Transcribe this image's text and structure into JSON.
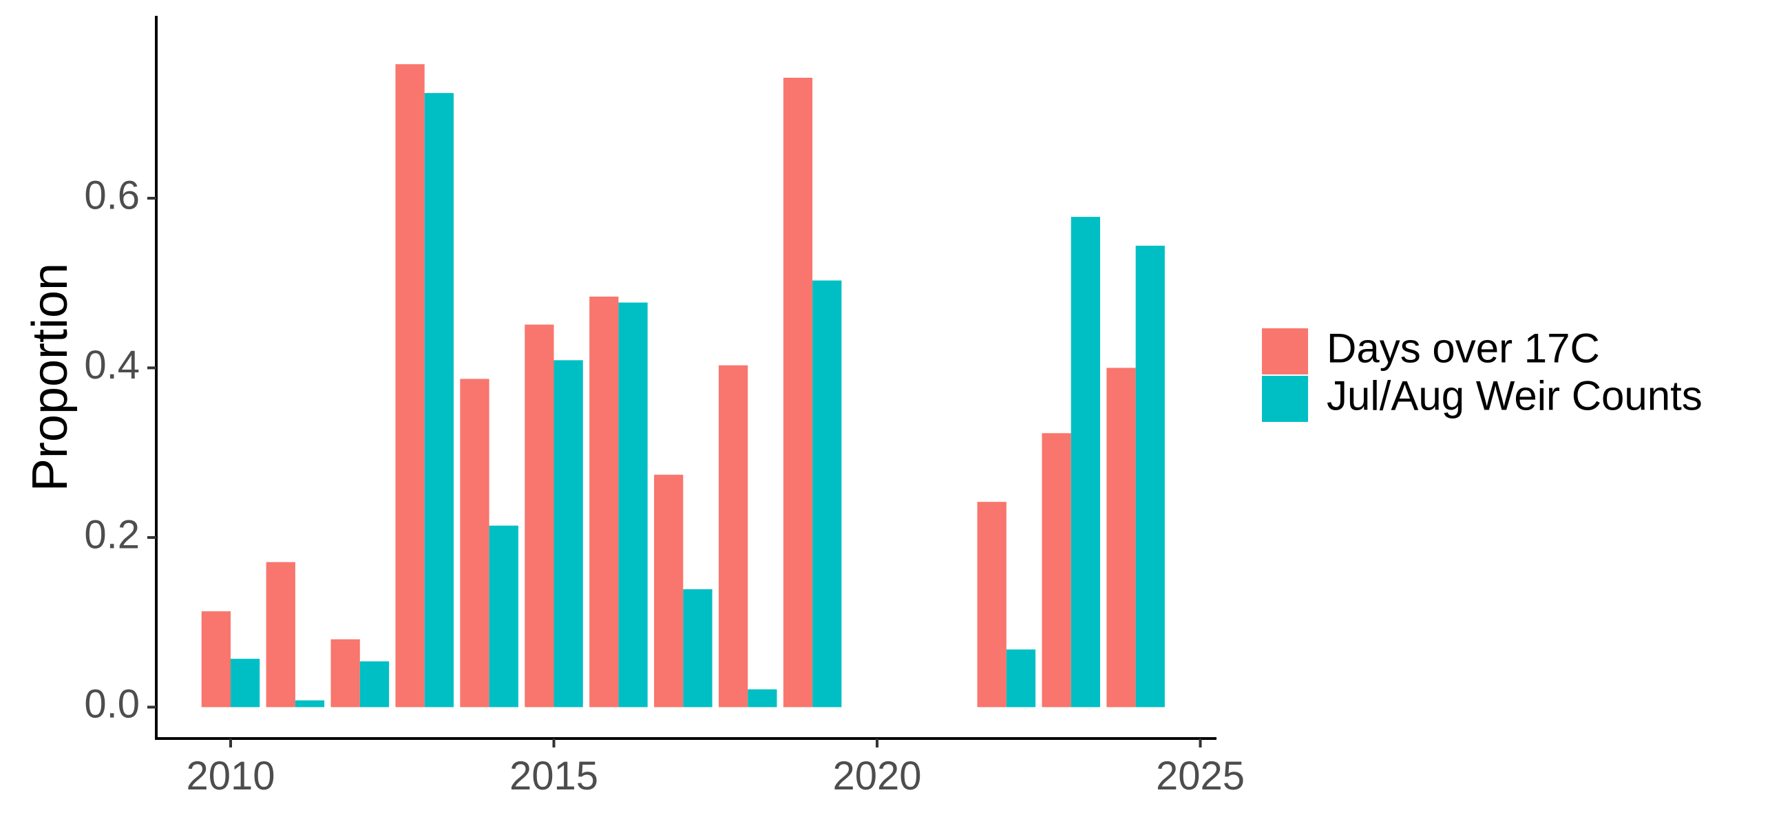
{
  "chart_data": {
    "type": "bar",
    "title": "",
    "xlabel": "",
    "ylabel": "Proportion",
    "xlim": [
      2008.85,
      2025.25
    ],
    "ylim": [
      -0.037,
      0.815
    ],
    "x_ticks": [
      2010,
      2015,
      2020,
      2025
    ],
    "y_ticks": [
      0.0,
      0.2,
      0.4,
      0.6
    ],
    "y_tick_labels": [
      "0.0",
      "0.2",
      "0.4",
      "0.6"
    ],
    "grid": false,
    "legend_position": "right",
    "series": [
      {
        "name": "Days over 17C",
        "color": "#F8766D",
        "points": [
          {
            "x": 2010,
            "y": 0.113
          },
          {
            "x": 2011,
            "y": 0.171
          },
          {
            "x": 2012,
            "y": 0.08
          },
          {
            "x": 2013,
            "y": 0.758
          },
          {
            "x": 2014,
            "y": 0.387
          },
          {
            "x": 2015,
            "y": 0.451
          },
          {
            "x": 2016,
            "y": 0.484
          },
          {
            "x": 2017,
            "y": 0.274
          },
          {
            "x": 2018,
            "y": 0.403
          },
          {
            "x": 2019,
            "y": 0.742
          },
          {
            "x": 2022,
            "y": 0.242
          },
          {
            "x": 2023,
            "y": 0.323
          },
          {
            "x": 2024,
            "y": 0.4
          }
        ]
      },
      {
        "name": "Jul/Aug Weir Counts",
        "color": "#00BFC4",
        "points": [
          {
            "x": 2010,
            "y": 0.057
          },
          {
            "x": 2011,
            "y": 0.008
          },
          {
            "x": 2012,
            "y": 0.054
          },
          {
            "x": 2013,
            "y": 0.724
          },
          {
            "x": 2014,
            "y": 0.214
          },
          {
            "x": 2015,
            "y": 0.409
          },
          {
            "x": 2016,
            "y": 0.477
          },
          {
            "x": 2017,
            "y": 0.139
          },
          {
            "x": 2018,
            "y": 0.021
          },
          {
            "x": 2019,
            "y": 0.503
          },
          {
            "x": 2022,
            "y": 0.068
          },
          {
            "x": 2023,
            "y": 0.578
          },
          {
            "x": 2024,
            "y": 0.544
          }
        ]
      }
    ]
  }
}
